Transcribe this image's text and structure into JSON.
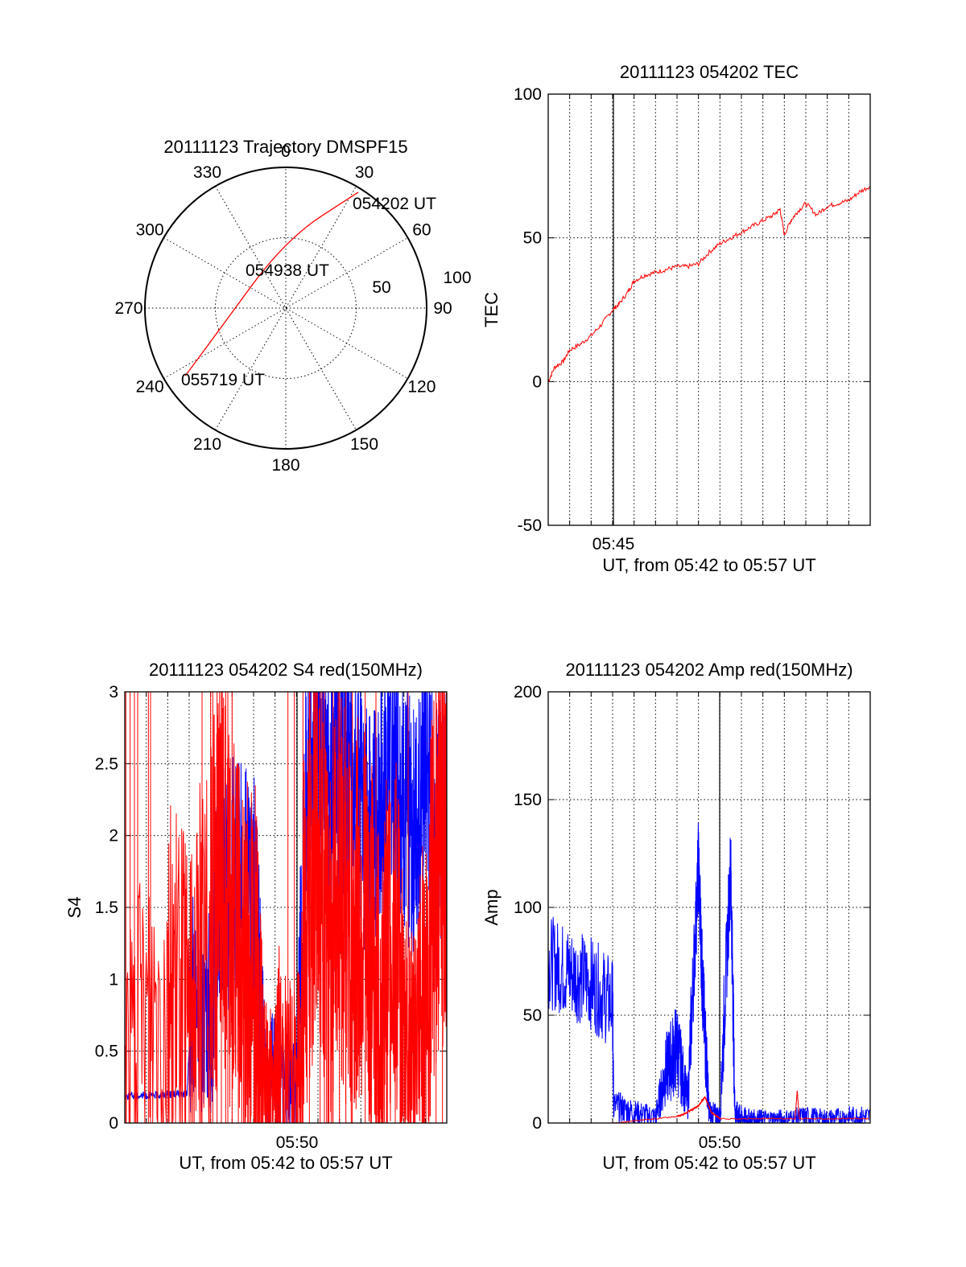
{
  "chart_data": [
    {
      "type": "polar",
      "title": "20111123 Trajectory DMSPF15",
      "azimuth_labels": [
        "0",
        "30",
        "60",
        "90",
        "120",
        "150",
        "180",
        "210",
        "240",
        "270",
        "300",
        "330"
      ],
      "ring_labels": [
        "50",
        "100"
      ],
      "trajectory_color": "#ff0000",
      "points": [
        {
          "azimuth": 32,
          "r": 97,
          "label": "054202 UT"
        },
        {
          "azimuth": 0,
          "r": 49
        },
        {
          "azimuth": 250,
          "r": 52
        },
        {
          "azimuth": 236,
          "r": 86,
          "label": "055719 UT"
        }
      ],
      "mid_label": "054938 UT"
    },
    {
      "type": "line",
      "title": "20111123 054202 TEC",
      "ylabel": "TEC",
      "xlabel": "UT, from 05:42 to 05:57 UT",
      "ylim": [
        -50,
        100
      ],
      "yticks": [
        "-50",
        "0",
        "50",
        "100"
      ],
      "xtick_label": "05:45",
      "series": [
        {
          "color": "#ff0000",
          "x": [
            0,
            0.3,
            0.7,
            1,
            1.5,
            2,
            2.5,
            3,
            3.3,
            3.7,
            4,
            4.5,
            5,
            5.5,
            6,
            6.5,
            7,
            7.5,
            8,
            8.5,
            9,
            9.5,
            10,
            10.5,
            10.8,
            11,
            11.3,
            11.6,
            12,
            12.5,
            13,
            13.5,
            14,
            14.5,
            15
          ],
          "y": [
            0,
            5,
            7,
            11,
            13,
            16,
            20,
            25,
            27,
            31,
            35,
            37,
            38,
            39,
            40,
            40,
            41,
            45,
            48,
            50,
            52,
            54,
            56,
            58,
            60,
            51,
            56,
            59,
            62,
            58,
            61,
            62,
            63,
            66,
            68
          ]
        }
      ]
    },
    {
      "type": "line",
      "title": "20111123 054202 S4 red(150MHz)",
      "ylabel": "S4",
      "xlabel": "UT, from 05:42 to 05:57 UT",
      "ylim": [
        0,
        3
      ],
      "yticks": [
        "0",
        "0.5",
        "1",
        "1.5",
        "2",
        "2.5",
        "3"
      ],
      "xtick_label": "05:50",
      "series": [
        {
          "color": "#0000ff",
          "x": [
            0,
            1,
            2,
            2.9,
            3.1,
            4,
            4.3,
            5,
            6,
            6.5,
            7,
            7.2,
            8,
            8.5,
            9,
            9.5,
            10,
            10.5,
            11,
            11.5,
            12,
            12.5,
            13,
            13.5,
            14,
            14.5,
            15
          ],
          "y": [
            0.19,
            0.19,
            0.2,
            0.2,
            0.85,
            0.8,
            1.5,
            1.7,
            1.6,
            0.4,
            0.35,
            0.3,
            0.25,
            2.5,
            2.7,
            2.3,
            2.5,
            2.4,
            2.1,
            1.9,
            2.3,
            2.6,
            2.2,
            2.0,
            2.5,
            2.0,
            2.3
          ]
        },
        {
          "color": "#ff0000",
          "x": [
            0,
            2,
            3,
            4,
            4.5,
            5,
            5.5,
            6,
            6.5,
            7,
            7.2,
            8,
            8.5,
            9,
            9.5,
            10,
            10.5,
            11,
            11.5,
            12,
            12.5,
            13,
            13.5,
            14,
            14.5,
            15
          ],
          "y": [
            0.5,
            1.0,
            0.8,
            1.3,
            1.8,
            1.4,
            1.0,
            1.2,
            0.3,
            0.25,
            0.5,
            0.3,
            1.5,
            2.0,
            1.0,
            1.8,
            1.2,
            1.6,
            1.1,
            0.8,
            1.4,
            0.6,
            0.5,
            0.9,
            1.8,
            2.0
          ]
        }
      ]
    },
    {
      "type": "line",
      "title": "20111123 054202 Amp red(150MHz)",
      "ylabel": "Amp",
      "xlabel": "UT, from 05:42 to 05:57 UT",
      "ylim": [
        0,
        200
      ],
      "yticks": [
        "0",
        "50",
        "100",
        "150",
        "200"
      ],
      "xtick_label": "05:50",
      "series": [
        {
          "color": "#0000ff",
          "x": [
            0,
            1,
            2,
            3,
            3.05,
            4,
            5,
            5.5,
            6,
            6.5,
            7,
            7.2,
            7.5,
            8,
            8.5,
            8.7,
            9,
            9.5,
            10,
            11,
            12,
            13,
            14,
            15
          ],
          "y": [
            75,
            70,
            65,
            55,
            8,
            5,
            3,
            25,
            35,
            10,
            120,
            60,
            5,
            3,
            120,
            5,
            3,
            2,
            2,
            2,
            3,
            2,
            3,
            3
          ]
        },
        {
          "color": "#ff0000",
          "x": [
            0,
            3,
            3.05,
            6,
            6.3,
            7,
            7.3,
            7.6,
            8,
            11.5,
            11.6,
            11.7,
            15
          ],
          "y": [
            0,
            0,
            0,
            3,
            4,
            8,
            12,
            5,
            2,
            2,
            15,
            2,
            2
          ]
        }
      ]
    }
  ]
}
